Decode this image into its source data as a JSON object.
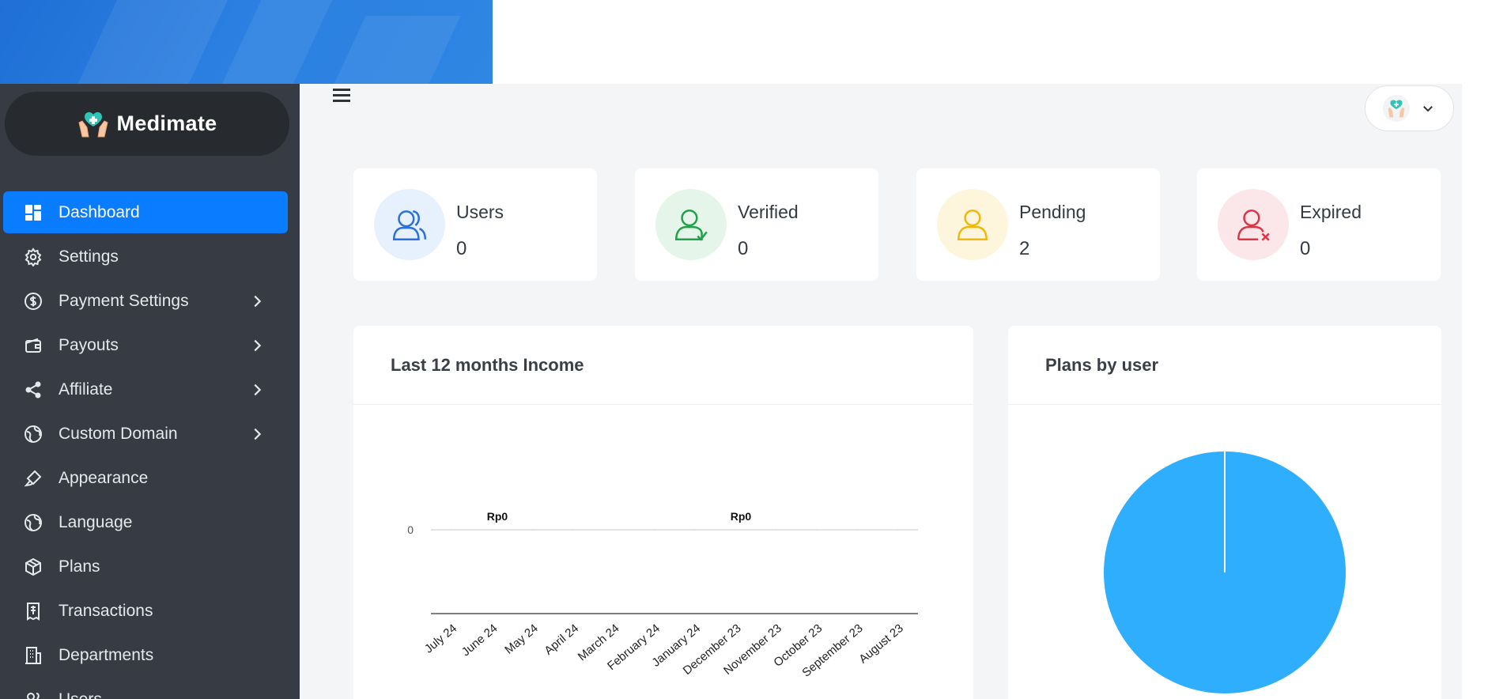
{
  "app": {
    "name": "Medimate",
    "accent_color": "#0a7cff",
    "sidebar_color": "#363b44",
    "banner_color": "#2b7fe0"
  },
  "sidebar": {
    "items": [
      {
        "label": "Dashboard",
        "icon": "dashboard-icon",
        "active": true,
        "has_submenu": false
      },
      {
        "label": "Settings",
        "icon": "gear-icon",
        "active": false,
        "has_submenu": false
      },
      {
        "label": "Payment Settings",
        "icon": "dollar-circle-icon",
        "active": false,
        "has_submenu": true
      },
      {
        "label": "Payouts",
        "icon": "wallet-icon",
        "active": false,
        "has_submenu": true
      },
      {
        "label": "Affiliate",
        "icon": "share-icon",
        "active": false,
        "has_submenu": true
      },
      {
        "label": "Custom Domain",
        "icon": "globe-icon",
        "active": false,
        "has_submenu": true
      },
      {
        "label": "Appearance",
        "icon": "brush-icon",
        "active": false,
        "has_submenu": false
      },
      {
        "label": "Language",
        "icon": "globe-icon",
        "active": false,
        "has_submenu": false
      },
      {
        "label": "Plans",
        "icon": "box-icon",
        "active": false,
        "has_submenu": false
      },
      {
        "label": "Transactions",
        "icon": "receipt-icon",
        "active": false,
        "has_submenu": false
      },
      {
        "label": "Departments",
        "icon": "building-icon",
        "active": false,
        "has_submenu": false
      },
      {
        "label": "Users",
        "icon": "users-icon",
        "active": false,
        "has_submenu": false
      }
    ]
  },
  "stats": [
    {
      "label": "Users",
      "value": "0",
      "icon": "users-icon",
      "color": "#2a6fe0",
      "bg": "#e7f0fd"
    },
    {
      "label": "Verified",
      "value": "0",
      "icon": "user-check-icon",
      "color": "#22a04a",
      "bg": "#e6f5ea"
    },
    {
      "label": "Pending",
      "value": "2",
      "icon": "user-icon",
      "color": "#f2b705",
      "bg": "#fdf6dd"
    },
    {
      "label": "Expired",
      "value": "0",
      "icon": "user-x-icon",
      "color": "#dc3545",
      "bg": "#fbe7e9"
    }
  ],
  "income_panel": {
    "title": "Last 12 months Income"
  },
  "plans_panel": {
    "title": "Plans by user"
  },
  "chart_data": [
    {
      "type": "line",
      "categories": [
        "July 24",
        "June 24",
        "May 24",
        "April 24",
        "March 24",
        "February 24",
        "January 24",
        "December 23",
        "November 23",
        "October 23",
        "September 23",
        "August 23"
      ],
      "series": [
        {
          "values": [
            0,
            0,
            0,
            0,
            0,
            0,
            0,
            0,
            0,
            0,
            0,
            0
          ]
        }
      ],
      "y_ticks": [
        "0"
      ],
      "data_labels": [
        "Rp0",
        "Rp0"
      ],
      "color": "#d8dadd"
    },
    {
      "type": "pie",
      "slices": [
        {
          "value": 100,
          "color": "#2eaefc"
        }
      ]
    }
  ]
}
